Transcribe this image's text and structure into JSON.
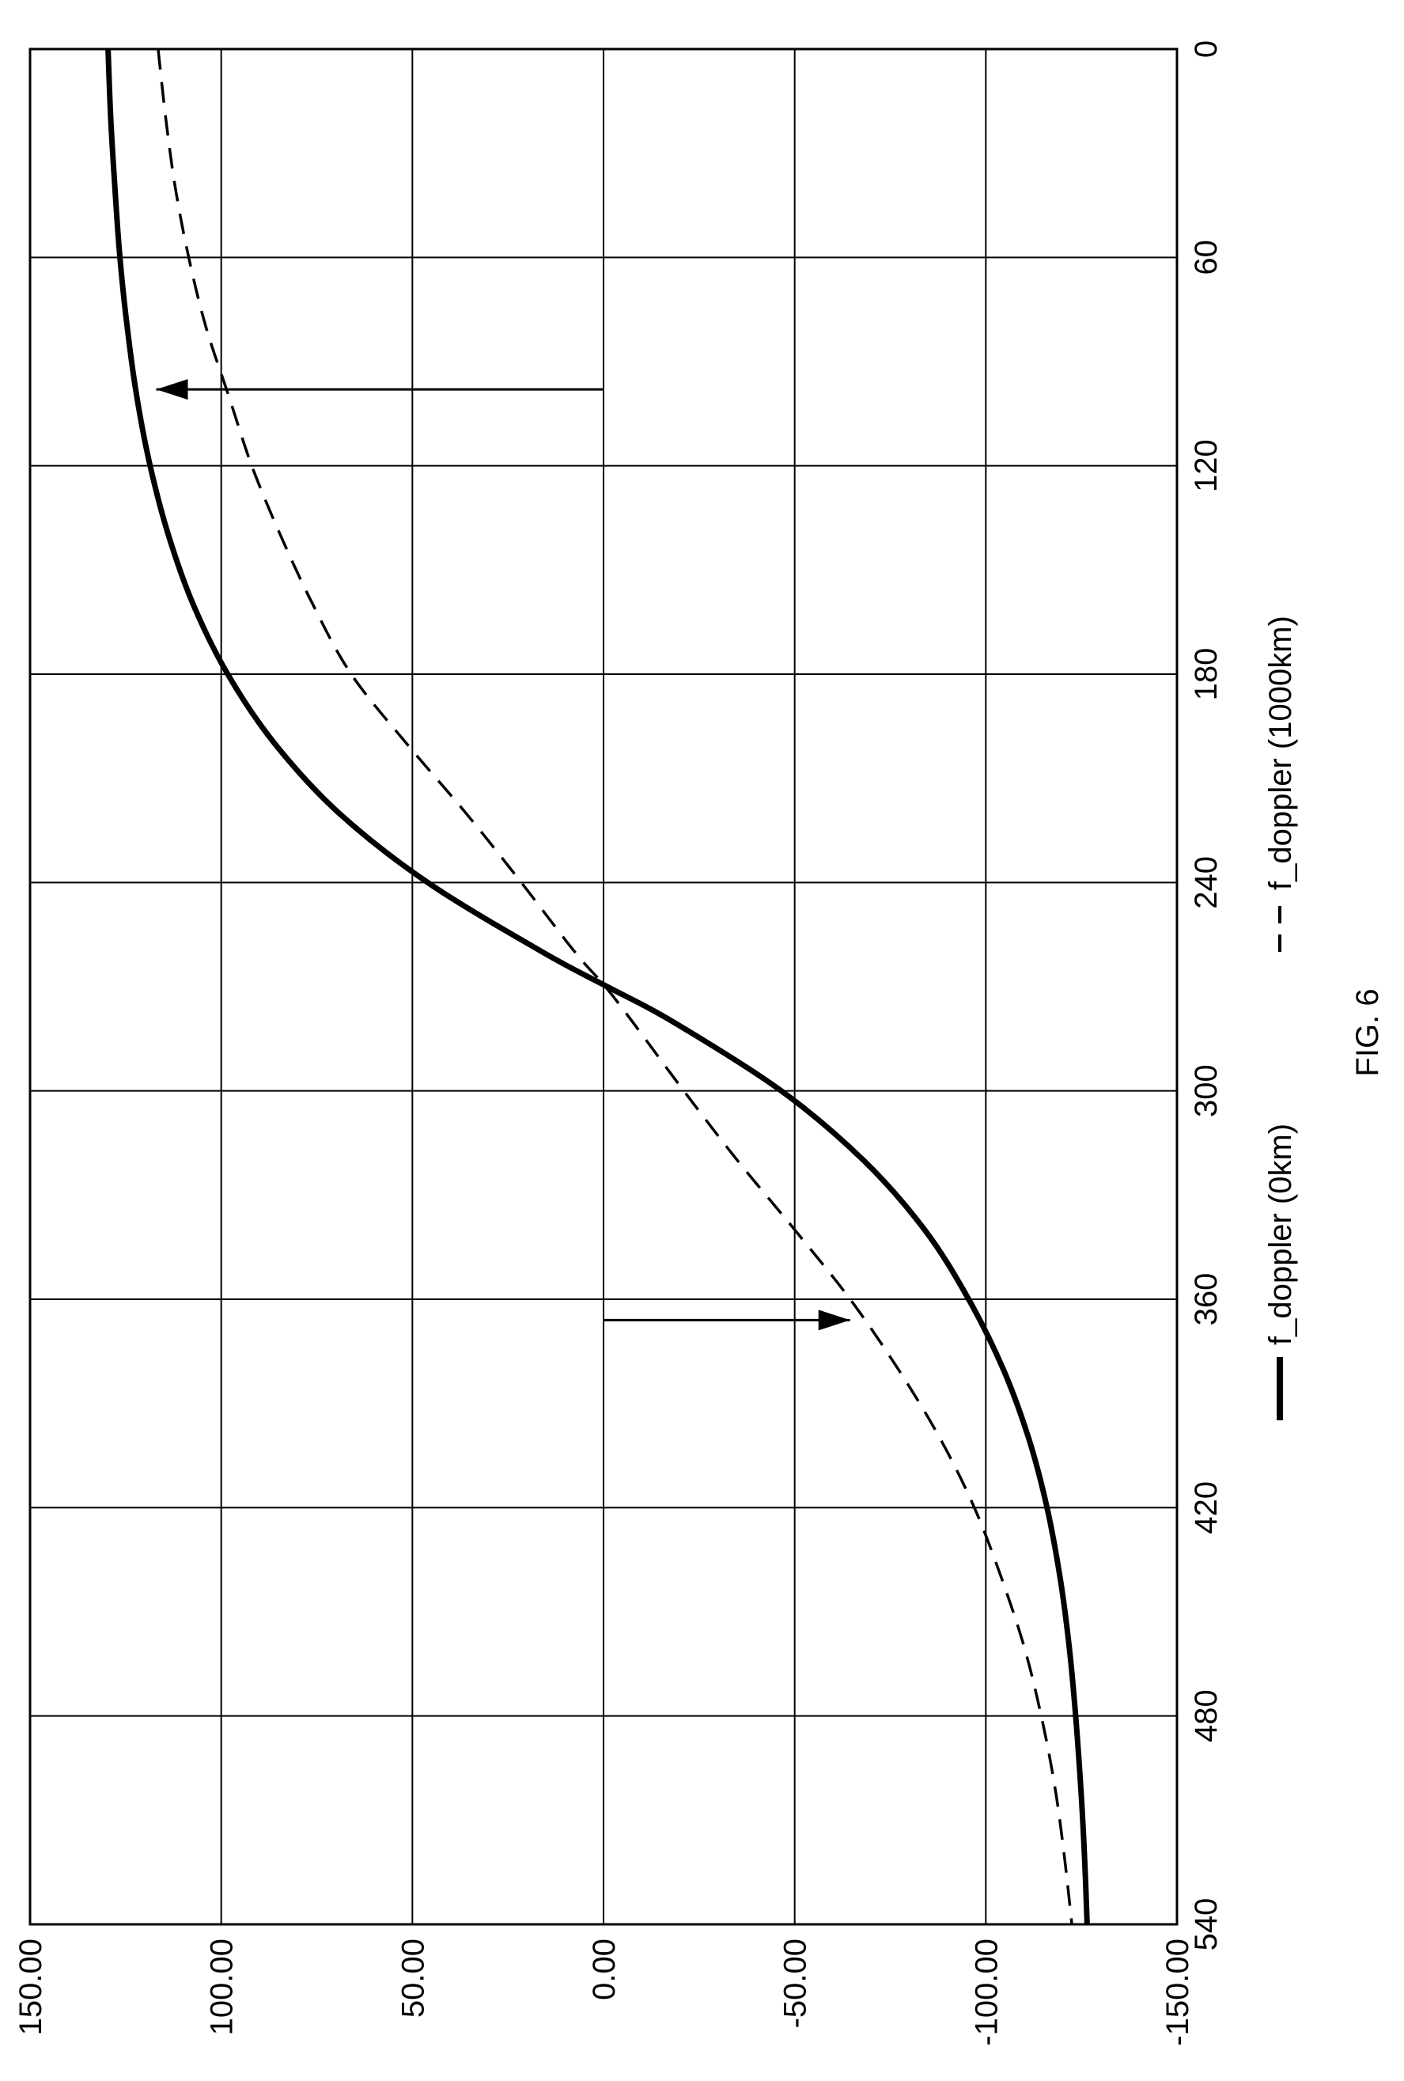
{
  "chart_data": {
    "type": "line",
    "caption": "FIG. 6",
    "x_ticks": [
      "0",
      "60",
      "120",
      "180",
      "240",
      "300",
      "360",
      "420",
      "480",
      "540"
    ],
    "y_ticks": [
      "150.00",
      "100.00",
      "50.00",
      "0.00",
      "-50.00",
      "-100.00",
      "-150.00"
    ],
    "xlim": [
      0,
      540
    ],
    "ylim": [
      -150,
      150
    ],
    "grid": true,
    "legend_position": "bottom",
    "series": [
      {
        "name": "f_doppler (0km)",
        "style": "solid",
        "points": [
          [
            0,
            129.6
          ],
          [
            20,
            128.9
          ],
          [
            40,
            127.8
          ],
          [
            60,
            126.5
          ],
          [
            80,
            124.6
          ],
          [
            100,
            122.1
          ],
          [
            120,
            118.6
          ],
          [
            140,
            113.8
          ],
          [
            160,
            107.3
          ],
          [
            180,
            98.3
          ],
          [
            200,
            86.0
          ],
          [
            220,
            69.2
          ],
          [
            240,
            46.0
          ],
          [
            260,
            16.0
          ],
          [
            270,
            -1.0
          ],
          [
            280,
            -18.0
          ],
          [
            300,
            -46.5
          ],
          [
            320,
            -68.0
          ],
          [
            340,
            -84.0
          ],
          [
            360,
            -95.5
          ],
          [
            380,
            -104.5
          ],
          [
            400,
            -111.2
          ],
          [
            420,
            -116.0
          ],
          [
            440,
            -119.4
          ],
          [
            460,
            -121.8
          ],
          [
            480,
            -123.5
          ],
          [
            500,
            -124.8
          ],
          [
            520,
            -125.8
          ],
          [
            540,
            -126.5
          ]
        ]
      },
      {
        "name": "f_doppler (1000km)",
        "style": "dashed",
        "points": [
          [
            0,
            116.5
          ],
          [
            20,
            114.5
          ],
          [
            40,
            112.0
          ],
          [
            60,
            108.5
          ],
          [
            80,
            104.0
          ],
          [
            100,
            98.0
          ],
          [
            120,
            92.0
          ],
          [
            140,
            84.5
          ],
          [
            160,
            76.0
          ],
          [
            180,
            66.0
          ],
          [
            200,
            51.5
          ],
          [
            220,
            36.0
          ],
          [
            240,
            21.5
          ],
          [
            260,
            7.5
          ],
          [
            270,
            -0.5
          ],
          [
            280,
            -7.5
          ],
          [
            300,
            -21.0
          ],
          [
            320,
            -35.0
          ],
          [
            340,
            -50.0
          ],
          [
            360,
            -64.5
          ],
          [
            380,
            -77.0
          ],
          [
            400,
            -88.0
          ],
          [
            420,
            -97.0
          ],
          [
            440,
            -104.0
          ],
          [
            460,
            -110.0
          ],
          [
            480,
            -114.5
          ],
          [
            500,
            -118.0
          ],
          [
            520,
            -120.5
          ],
          [
            540,
            -122.5
          ]
        ]
      }
    ],
    "annotations": [
      {
        "type": "arrow",
        "from": [
          98,
          0
        ],
        "to": [
          98,
          117
        ],
        "target": "f_doppler (0km)"
      },
      {
        "type": "arrow",
        "from": [
          366,
          0
        ],
        "to": [
          366,
          -64.5
        ],
        "target": "f_doppler (1000km)"
      }
    ]
  },
  "colors": {
    "line": "#000000",
    "grid": "#000000",
    "background": "#ffffff"
  }
}
